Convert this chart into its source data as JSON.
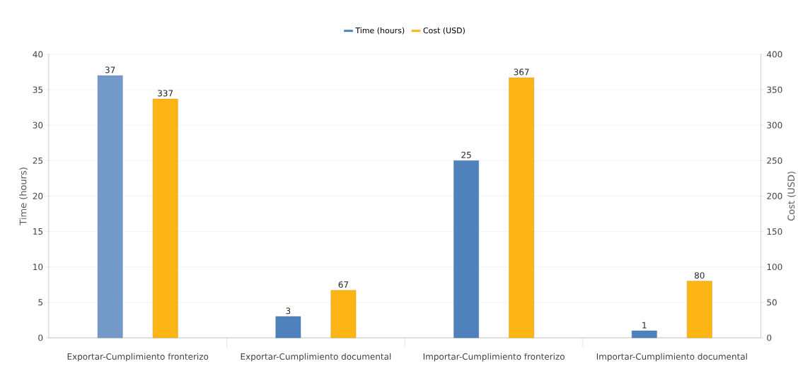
{
  "chart_data": {
    "type": "bar",
    "ylabel": "Time (hours)",
    "y2label": "Cost (USD)",
    "categories": [
      "Exportar-Cumplimiento fronterizo",
      "Exportar-Cumplimiento documental",
      "Importar-Cumplimiento fronterizo",
      "Importar-Cumplimiento documental"
    ],
    "series": [
      {
        "name": "Time (hours)",
        "color": "#4f81bd",
        "colors": [
          "#7399c9",
          "#4f81bd",
          "#4f81bd",
          "#4f81bd"
        ],
        "values": [
          37,
          3,
          25,
          1
        ]
      },
      {
        "name": "Cost (USD)",
        "color": "#fdb515",
        "axis": "y2",
        "values": [
          337,
          67,
          367,
          80
        ]
      }
    ],
    "ylim": [
      0,
      40
    ],
    "yticks": [
      0,
      5,
      10,
      15,
      20,
      25,
      30,
      35,
      40
    ],
    "y2lim": [
      0,
      400
    ],
    "y2ticks": [
      0,
      50,
      100,
      150,
      200,
      250,
      300,
      350,
      400
    ],
    "data_labels": true,
    "grid": "y",
    "legend": "top"
  }
}
